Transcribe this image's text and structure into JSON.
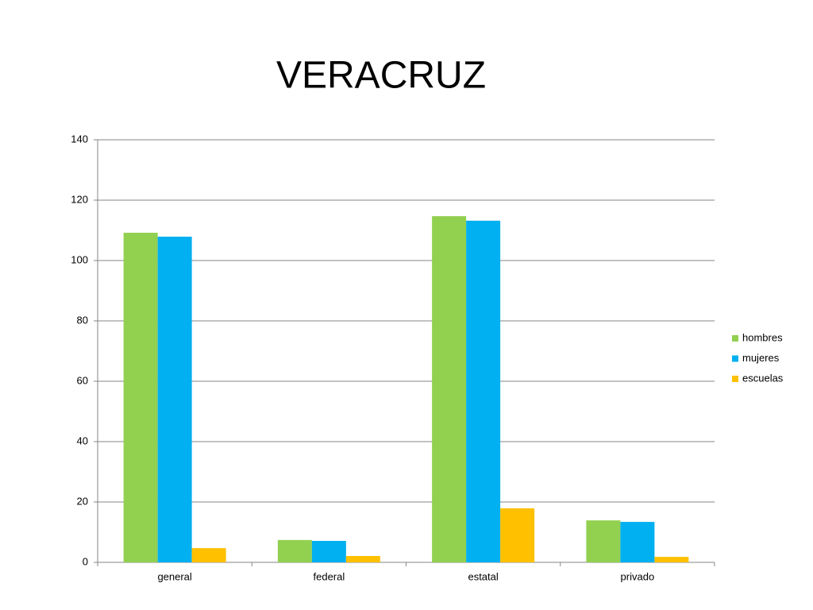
{
  "chart_data": {
    "type": "bar",
    "title": "VERACRUZ",
    "categories": [
      "general",
      "federal",
      "estatal",
      "privado"
    ],
    "series": [
      {
        "name": "hombres",
        "color": "#92d050",
        "values": [
          109.2,
          7.4,
          114.7,
          13.9
        ]
      },
      {
        "name": "mujeres",
        "color": "#00b0f0",
        "values": [
          107.9,
          7.1,
          113.2,
          13.4
        ]
      },
      {
        "name": "escuelas",
        "color": "#ffc000",
        "values": [
          4.7,
          2.1,
          17.9,
          1.8
        ]
      }
    ],
    "ylim": [
      0,
      140
    ],
    "yticks": [
      0,
      20,
      40,
      60,
      80,
      100,
      120,
      140
    ],
    "grid": true,
    "legend": "right"
  }
}
